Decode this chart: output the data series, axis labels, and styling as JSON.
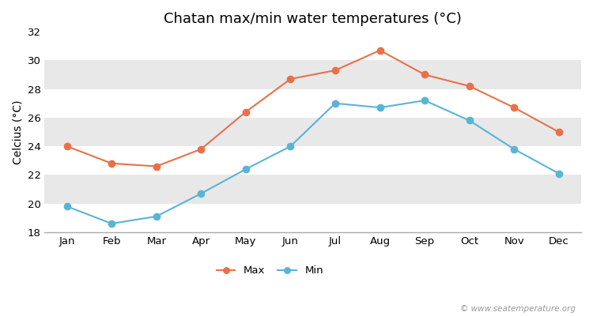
{
  "title": "Chatan max/min water temperatures (°C)",
  "xlabel": "",
  "ylabel": "Celcius (°C)",
  "months": [
    "Jan",
    "Feb",
    "Mar",
    "Apr",
    "May",
    "Jun",
    "Jul",
    "Aug",
    "Sep",
    "Oct",
    "Nov",
    "Dec"
  ],
  "max_values": [
    24.0,
    22.8,
    22.6,
    23.8,
    26.4,
    28.7,
    29.3,
    30.7,
    29.0,
    28.2,
    26.7,
    25.0
  ],
  "min_values": [
    19.8,
    18.6,
    19.1,
    20.7,
    22.4,
    24.0,
    27.0,
    26.7,
    27.2,
    25.8,
    23.8,
    22.1
  ],
  "max_color": "#e8714a",
  "min_color": "#5ab4d6",
  "ylim": [
    18,
    32
  ],
  "yticks": [
    18,
    20,
    22,
    24,
    26,
    28,
    30,
    32
  ],
  "band_colors": [
    "#ffffff",
    "#e8e8e8"
  ],
  "background_color": "#ffffff",
  "title_fontsize": 13,
  "axis_fontsize": 10,
  "tick_fontsize": 9.5,
  "legend_labels": [
    "Max",
    "Min"
  ],
  "watermark": "© www.seatemperature.org"
}
